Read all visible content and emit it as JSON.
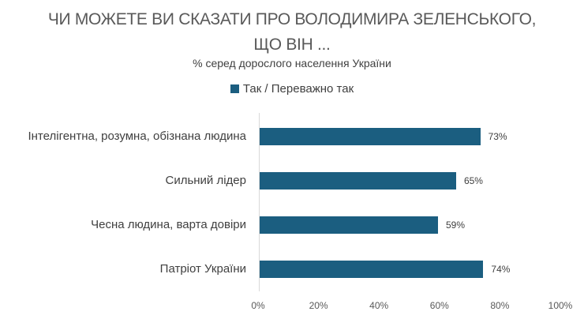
{
  "title_line1": "ЧИ МОЖЕТЕ ВИ СКАЗАТИ ПРО ВОЛОДИМИРА ЗЕЛЕНСЬКОГО,",
  "title_line2": "ЩО ВІН ...",
  "subtitle": "% серед дорослого населення України",
  "legend": {
    "label": "Так / Переважно так",
    "color": "#1b5e80"
  },
  "chart_data": {
    "type": "bar",
    "orientation": "horizontal",
    "title": "ЧИ МОЖЕТЕ ВИ СКАЗАТИ ПРО ВОЛОДИМИРА ЗЕЛЕНСЬКОГО, ЩО ВІН ...",
    "subtitle": "% серед дорослого населення України",
    "categories": [
      "Інтелігентна, розумна, обізнана людина",
      "Сильний лідер",
      "Чесна людина, варта довіри",
      "Патріот України"
    ],
    "series": [
      {
        "name": "Так / Переважно так",
        "values": [
          73,
          65,
          59,
          74
        ],
        "color": "#1b5e80"
      }
    ],
    "value_labels": [
      "73%",
      "65%",
      "59%",
      "74%"
    ],
    "xlabel": "",
    "ylabel": "",
    "xlim": [
      0,
      100
    ],
    "x_ticks": [
      "0%",
      "20%",
      "40%",
      "60%",
      "80%",
      "100%"
    ],
    "grid": false,
    "legend_position": "top"
  }
}
